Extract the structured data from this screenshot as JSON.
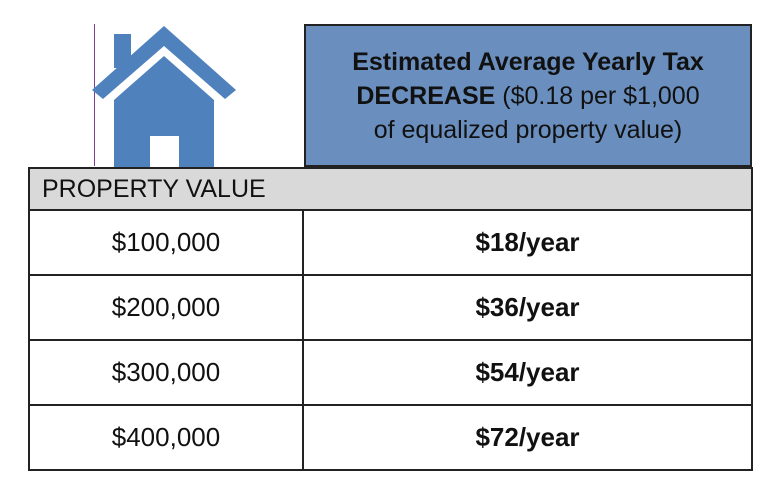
{
  "header": {
    "line1": "Estimated Average Yearly Tax",
    "line2_strong": "DECREASE",
    "line2_rest": " ($0.18 per $1,000",
    "line3": "of equalized property value)"
  },
  "table": {
    "column_header": "PROPERTY VALUE",
    "rows": [
      {
        "property_value": "$100,000",
        "tax_decrease": "$18/year"
      },
      {
        "property_value": "$200,000",
        "tax_decrease": "$36/year"
      },
      {
        "property_value": "$300,000",
        "tax_decrease": "$54/year"
      },
      {
        "property_value": "$400,000",
        "tax_decrease": "$72/year"
      }
    ]
  },
  "icons": {
    "house": "house-icon"
  },
  "colors": {
    "header_fill": "#6a8fbe",
    "house_fill": "#4f81bd",
    "column_header_fill": "#d9d9d9"
  }
}
